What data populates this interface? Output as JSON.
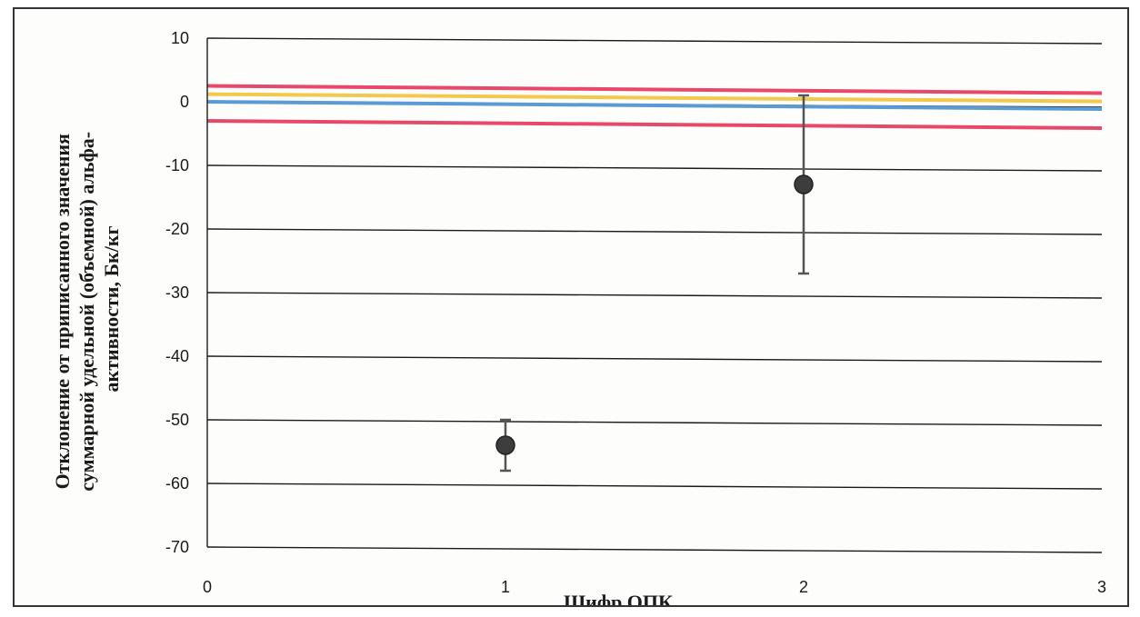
{
  "chart_data": {
    "type": "scatter",
    "title": "",
    "xlabel": "Шифр ОПК",
    "ylabel_lines": [
      "Отклонение от приписанного значения",
      "суммарной удельной (объемной) альфа-",
      "активности, Бк/кг"
    ],
    "xlim": [
      0,
      3
    ],
    "ylim": [
      -70,
      10
    ],
    "x_ticks": [
      "0",
      "1",
      "2",
      "3"
    ],
    "y_ticks": [
      "10",
      "0",
      "-10",
      "-20",
      "-30",
      "-40",
      "-50",
      "-60",
      "-70"
    ],
    "grid": true,
    "points": [
      {
        "x": 1,
        "y": -54,
        "err_low": -58,
        "err_high": -50
      },
      {
        "x": 2,
        "y": -13,
        "err_low": -27,
        "err_high": 1
      }
    ],
    "reference_lines": [
      {
        "y": 0,
        "color": "#5b9bd5"
      },
      {
        "y": 2.5,
        "color": "#e8496a"
      },
      {
        "y": -3,
        "color": "#e8496a"
      },
      {
        "y": 1.2,
        "color": "#f2c94c"
      }
    ],
    "colors": {
      "marker": "#3d3d3d",
      "error_bar": "#555555",
      "grid": "#1a1a1a"
    }
  }
}
